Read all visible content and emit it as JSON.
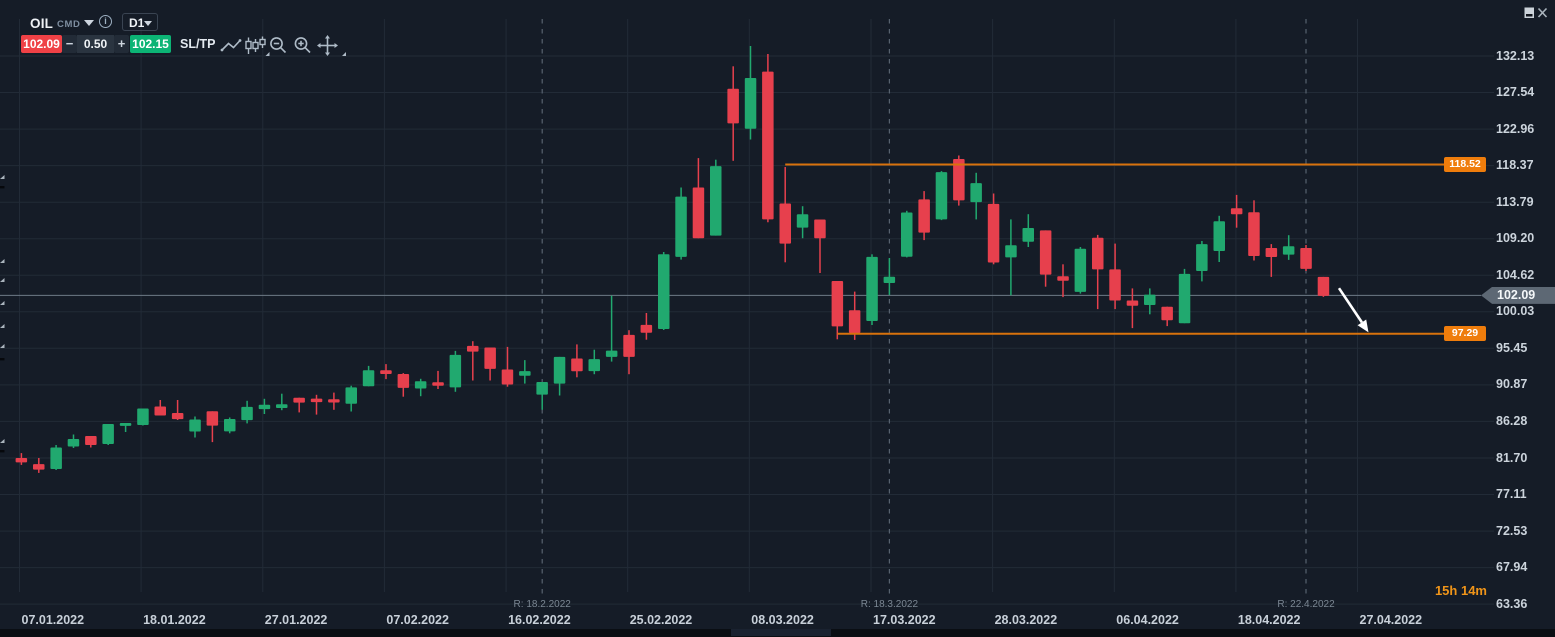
{
  "window": {
    "panel_icon": "window-panel-icon",
    "close_icon": "close-icon"
  },
  "header": {
    "symbol": "OIL",
    "instrument_type": "CMD",
    "timeframe": "D1"
  },
  "order_panel": {
    "sell_price": "102.09",
    "volume": "0.50",
    "buy_price": "102.15",
    "decrease_label": "−",
    "increase_label": "+",
    "sltp_label": "SL/TP"
  },
  "chart_toolbar": {
    "icons": [
      {
        "name": "line-chart-icon"
      },
      {
        "name": "candlestick-icon",
        "has_submenu": true
      },
      {
        "name": "zoom-out-icon"
      },
      {
        "name": "zoom-in-icon"
      },
      {
        "name": "pan-icon",
        "has_submenu": true
      }
    ]
  },
  "colors": {
    "background": "#151c27",
    "grid": "#222b37",
    "candle_up": "#21a96f",
    "candle_down": "#e7404d",
    "sell_badge": "#ef4146",
    "buy_badge": "#0cb475",
    "level_line": "#d8720c",
    "level_badge": "#ef7d0c",
    "current_price_line": "#6e7a86",
    "current_price_badge": "#5d6874",
    "axis_text": "#ccd4dc",
    "rollover_line": "#57626f",
    "countdown_digits": "#f09519",
    "arrow": "#ffffff"
  },
  "chart_data": {
    "type": "candlestick",
    "symbol": "OIL",
    "timeframe": "D1",
    "price_axis": {
      "labels": [
        "132.13",
        "127.54",
        "122.96",
        "118.37",
        "113.79",
        "109.20",
        "104.62",
        "100.03",
        "95.45",
        "90.87",
        "86.28",
        "81.70",
        "77.11",
        "72.53",
        "67.94",
        "63.36"
      ],
      "max": 132.13,
      "min": 63.36,
      "step": 4.585
    },
    "time_axis": {
      "labels": [
        "07.01.2022",
        "18.01.2022",
        "27.01.2022",
        "07.02.2022",
        "16.02.2022",
        "25.02.2022",
        "08.03.2022",
        "17.03.2022",
        "28.03.2022",
        "06.04.2022",
        "18.04.2022",
        "27.04.2022"
      ]
    },
    "rollovers": [
      {
        "label": "R: 18.2.2022",
        "index": 30
      },
      {
        "label": "R: 18.3.2022",
        "index": 50
      },
      {
        "label": "R: 22.4.2022",
        "index": 74
      }
    ],
    "price_lines": [
      {
        "label": "118.52",
        "price": 118.52,
        "start_index": 44
      },
      {
        "label": "97.29",
        "price": 97.29,
        "start_index": 47
      }
    ],
    "current_price": {
      "label": "102.09",
      "value": 102.09
    },
    "countdown": {
      "hours": "15h",
      "minutes": "14m"
    },
    "annotation_arrow": {
      "from": {
        "index": 75.9,
        "price": 103.0
      },
      "to": {
        "index": 77.6,
        "price": 97.45
      }
    },
    "left_scale_markers": [
      {
        "type": "triangle",
        "price": 116.95
      },
      {
        "type": "dash",
        "price": 115.69
      },
      {
        "type": "triangle",
        "price": 106.41
      },
      {
        "type": "triangle",
        "price": 104.03
      },
      {
        "type": "triangle",
        "price": 101.14
      },
      {
        "type": "triangle",
        "price": 98.25
      },
      {
        "type": "triangle",
        "price": 95.74
      },
      {
        "type": "dash",
        "price": 94.11
      },
      {
        "type": "triangle",
        "price": 83.83
      },
      {
        "type": "dash",
        "price": 82.57
      }
    ],
    "candles": [
      {
        "date": "07.01.2022",
        "o": 81.69,
        "h": 82.31,
        "l": 80.83,
        "c": 81.14
      },
      {
        "date": "10.01.2022",
        "o": 80.93,
        "h": 81.69,
        "l": 79.82,
        "c": 80.24
      },
      {
        "date": "11.01.2022",
        "o": 80.31,
        "h": 83.32,
        "l": 80.19,
        "c": 83.01
      },
      {
        "date": "12.01.2022",
        "o": 83.13,
        "h": 84.64,
        "l": 82.95,
        "c": 84.07
      },
      {
        "date": "13.01.2022",
        "o": 84.45,
        "h": 84.45,
        "l": 83.01,
        "c": 83.32
      },
      {
        "date": "14.01.2022",
        "o": 83.45,
        "h": 85.96,
        "l": 83.32,
        "c": 85.96
      },
      {
        "date": "17.01.2022",
        "o": 85.71,
        "h": 86.08,
        "l": 84.95,
        "c": 86.08
      },
      {
        "date": "18.01.2022",
        "o": 85.83,
        "h": 87.9,
        "l": 85.77,
        "c": 87.9
      },
      {
        "date": "19.01.2022",
        "o": 88.15,
        "h": 88.97,
        "l": 87.02,
        "c": 87.02
      },
      {
        "date": "20.01.2022",
        "o": 87.34,
        "h": 88.97,
        "l": 86.46,
        "c": 86.58
      },
      {
        "date": "21.01.2022",
        "o": 85.02,
        "h": 86.9,
        "l": 84.26,
        "c": 86.52
      },
      {
        "date": "24.01.2022",
        "o": 87.55,
        "h": 87.55,
        "l": 83.69,
        "c": 85.76
      },
      {
        "date": "25.01.2022",
        "o": 85.02,
        "h": 86.77,
        "l": 84.79,
        "c": 86.58
      },
      {
        "date": "26.01.2022",
        "o": 86.45,
        "h": 88.87,
        "l": 86.03,
        "c": 88.1
      },
      {
        "date": "27.01.2022",
        "o": 87.83,
        "h": 89.12,
        "l": 87.21,
        "c": 88.38
      },
      {
        "date": "28.01.2022",
        "o": 87.96,
        "h": 89.76,
        "l": 87.69,
        "c": 88.43
      },
      {
        "date": "31.01.2022",
        "o": 89.26,
        "h": 89.26,
        "l": 87.41,
        "c": 88.65
      },
      {
        "date": "01.02.2022",
        "o": 89.14,
        "h": 89.62,
        "l": 87.14,
        "c": 88.7
      },
      {
        "date": "02.02.2022",
        "o": 89.07,
        "h": 89.9,
        "l": 87.74,
        "c": 88.65
      },
      {
        "date": "03.02.2022",
        "o": 88.49,
        "h": 90.76,
        "l": 87.53,
        "c": 90.55
      },
      {
        "date": "04.02.2022",
        "o": 90.69,
        "h": 93.25,
        "l": 90.69,
        "c": 92.69
      },
      {
        "date": "07.02.2022",
        "o": 92.69,
        "h": 93.47,
        "l": 91.59,
        "c": 92.23
      },
      {
        "date": "08.02.2022",
        "o": 92.23,
        "h": 92.34,
        "l": 89.38,
        "c": 90.49
      },
      {
        "date": "09.02.2022",
        "o": 90.41,
        "h": 91.63,
        "l": 89.44,
        "c": 91.31
      },
      {
        "date": "10.02.2022",
        "o": 91.2,
        "h": 92.62,
        "l": 90.35,
        "c": 90.76
      },
      {
        "date": "11.02.2022",
        "o": 90.55,
        "h": 95.13,
        "l": 90.0,
        "c": 94.63
      },
      {
        "date": "14.02.2022",
        "o": 95.76,
        "h": 96.35,
        "l": 91.41,
        "c": 95.04
      },
      {
        "date": "15.02.2022",
        "o": 95.56,
        "h": 95.56,
        "l": 91.41,
        "c": 92.88
      },
      {
        "date": "16.02.2022",
        "o": 92.79,
        "h": 95.63,
        "l": 90.64,
        "c": 90.91
      },
      {
        "date": "17.02.2022",
        "o": 92.0,
        "h": 93.97,
        "l": 91.03,
        "c": 92.59
      },
      {
        "date": "18.02.2022",
        "o": 89.65,
        "h": 91.23,
        "l": 87.75,
        "c": 91.23
      },
      {
        "date": "21.02.2022",
        "o": 91.03,
        "h": 94.38,
        "l": 89.53,
        "c": 94.38
      },
      {
        "date": "22.02.2022",
        "o": 94.18,
        "h": 95.94,
        "l": 91.82,
        "c": 92.59
      },
      {
        "date": "23.02.2022",
        "o": 92.59,
        "h": 95.28,
        "l": 92.21,
        "c": 94.1
      },
      {
        "date": "24.02.2022",
        "o": 94.38,
        "h": 102.05,
        "l": 93.79,
        "c": 95.17
      },
      {
        "date": "25.02.2022",
        "o": 97.14,
        "h": 97.73,
        "l": 92.21,
        "c": 94.38
      },
      {
        "date": "28.02.2022",
        "o": 98.39,
        "h": 99.88,
        "l": 96.53,
        "c": 97.41
      },
      {
        "date": "01.03.2022",
        "o": 97.88,
        "h": 107.54,
        "l": 97.75,
        "c": 107.25
      },
      {
        "date": "02.03.2022",
        "o": 106.92,
        "h": 115.63,
        "l": 106.58,
        "c": 114.49
      },
      {
        "date": "03.03.2022",
        "o": 115.63,
        "h": 119.32,
        "l": 109.27,
        "c": 109.27
      },
      {
        "date": "04.03.2022",
        "o": 109.6,
        "h": 119.12,
        "l": 109.6,
        "c": 118.32
      },
      {
        "date": "07.03.2022",
        "o": 128.03,
        "h": 130.84,
        "l": 118.98,
        "c": 123.67
      },
      {
        "date": "08.03.2022",
        "o": 123.0,
        "h": 133.38,
        "l": 121.65,
        "c": 129.37
      },
      {
        "date": "09.03.2022",
        "o": 130.17,
        "h": 132.38,
        "l": 111.28,
        "c": 111.62
      },
      {
        "date": "10.03.2022",
        "o": 113.62,
        "h": 118.2,
        "l": 106.25,
        "c": 108.59
      },
      {
        "date": "11.03.2022",
        "o": 110.6,
        "h": 113.28,
        "l": 109.27,
        "c": 112.28
      },
      {
        "date": "14.03.2022",
        "o": 111.62,
        "h": 111.62,
        "l": 104.9,
        "c": 109.27
      },
      {
        "date": "15.03.2022",
        "o": 103.9,
        "h": 103.9,
        "l": 96.58,
        "c": 98.2
      },
      {
        "date": "16.03.2022",
        "o": 100.22,
        "h": 102.57,
        "l": 96.51,
        "c": 97.37
      },
      {
        "date": "17.03.2022",
        "o": 98.88,
        "h": 107.25,
        "l": 98.38,
        "c": 106.92
      },
      {
        "date": "18.03.2022",
        "o": 103.65,
        "h": 106.78,
        "l": 102.14,
        "c": 104.44
      },
      {
        "date": "21.03.2022",
        "o": 106.95,
        "h": 112.71,
        "l": 106.86,
        "c": 112.49
      },
      {
        "date": "22.03.2022",
        "o": 114.14,
        "h": 115.18,
        "l": 109.03,
        "c": 109.98
      },
      {
        "date": "23.03.2022",
        "o": 111.63,
        "h": 117.69,
        "l": 111.54,
        "c": 117.56
      },
      {
        "date": "24.03.2022",
        "o": 119.21,
        "h": 119.65,
        "l": 113.36,
        "c": 114.01
      },
      {
        "date": "25.03.2022",
        "o": 113.8,
        "h": 117.48,
        "l": 111.63,
        "c": 116.18
      },
      {
        "date": "28.03.2022",
        "o": 113.57,
        "h": 114.88,
        "l": 105.99,
        "c": 106.22
      },
      {
        "date": "29.03.2022",
        "o": 106.86,
        "h": 111.63,
        "l": 102.1,
        "c": 108.38
      },
      {
        "date": "30.03.2022",
        "o": 108.82,
        "h": 112.28,
        "l": 108.17,
        "c": 110.55
      },
      {
        "date": "31.03.2022",
        "o": 110.25,
        "h": 110.25,
        "l": 103.18,
        "c": 104.7
      },
      {
        "date": "01.04.2022",
        "o": 104.49,
        "h": 105.99,
        "l": 101.88,
        "c": 103.92
      },
      {
        "date": "04.04.2022",
        "o": 102.53,
        "h": 108.17,
        "l": 102.32,
        "c": 107.95
      },
      {
        "date": "05.04.2022",
        "o": 109.33,
        "h": 109.68,
        "l": 100.37,
        "c": 105.35
      },
      {
        "date": "06.04.2022",
        "o": 105.35,
        "h": 108.59,
        "l": 100.37,
        "c": 101.45
      },
      {
        "date": "07.04.2022",
        "o": 101.45,
        "h": 102.97,
        "l": 97.99,
        "c": 100.8
      },
      {
        "date": "08.04.2022",
        "o": 100.89,
        "h": 102.97,
        "l": 99.72,
        "c": 102.19
      },
      {
        "date": "11.04.2022",
        "o": 100.67,
        "h": 100.67,
        "l": 98.24,
        "c": 98.98
      },
      {
        "date": "12.04.2022",
        "o": 98.6,
        "h": 105.42,
        "l": 98.6,
        "c": 104.79
      },
      {
        "date": "13.04.2022",
        "o": 105.15,
        "h": 108.92,
        "l": 103.85,
        "c": 108.53
      },
      {
        "date": "14.04.2022",
        "o": 107.66,
        "h": 112.08,
        "l": 106.28,
        "c": 111.4
      },
      {
        "date": "18.04.2022",
        "o": 113.02,
        "h": 114.7,
        "l": 110.59,
        "c": 112.27
      },
      {
        "date": "19.04.2022",
        "o": 112.53,
        "h": 114.02,
        "l": 106.47,
        "c": 107.04
      },
      {
        "date": "20.04.2022",
        "o": 108.04,
        "h": 108.53,
        "l": 104.41,
        "c": 106.91
      },
      {
        "date": "21.04.2022",
        "o": 107.21,
        "h": 109.65,
        "l": 106.55,
        "c": 108.27
      },
      {
        "date": "22.04.2022",
        "o": 108.04,
        "h": 108.42,
        "l": 105.15,
        "c": 105.42
      },
      {
        "date": "25.04.2022",
        "o": 104.41,
        "h": 104.41,
        "l": 101.9,
        "c": 102.02
      }
    ]
  }
}
